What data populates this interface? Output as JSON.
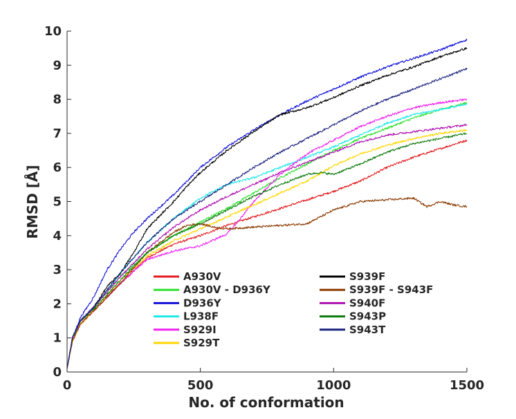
{
  "chart_data": {
    "type": "line",
    "title": "",
    "xlabel": "No. of conformation",
    "ylabel": "RMSD [Å]",
    "xlim": [
      0,
      1500
    ],
    "ylim": [
      0,
      10
    ],
    "xticks": [
      0,
      500,
      1000,
      1500
    ],
    "yticks": [
      0,
      1,
      2,
      3,
      4,
      5,
      6,
      7,
      8,
      9,
      10
    ],
    "grid": false,
    "legend_position": "bottom-right, two columns, no box",
    "series": [
      {
        "name": "A930V",
        "color": "#e31a1c",
        "x": [
          0,
          20,
          50,
          100,
          200,
          300,
          400,
          500,
          600,
          700,
          800,
          900,
          1000,
          1100,
          1200,
          1300,
          1400,
          1500
        ],
        "y": [
          0.1,
          0.9,
          1.4,
          1.8,
          2.6,
          3.35,
          3.75,
          4.0,
          4.3,
          4.55,
          4.8,
          5.05,
          5.3,
          5.6,
          6.0,
          6.3,
          6.55,
          6.8
        ]
      },
      {
        "name": "A930V - D936Y",
        "color": "#2ee02e",
        "x": [
          0,
          20,
          50,
          100,
          200,
          300,
          400,
          500,
          600,
          700,
          800,
          900,
          1000,
          1100,
          1200,
          1300,
          1400,
          1500
        ],
        "y": [
          0.1,
          1.0,
          1.5,
          1.9,
          2.8,
          3.5,
          4.0,
          4.4,
          4.8,
          5.25,
          5.7,
          6.1,
          6.5,
          6.85,
          7.15,
          7.45,
          7.7,
          7.9
        ]
      },
      {
        "name": "D936Y",
        "color": "#1010d8",
        "x": [
          0,
          20,
          50,
          100,
          150,
          200,
          250,
          300,
          350,
          400,
          450,
          500,
          600,
          700,
          800,
          900,
          1000,
          1100,
          1200,
          1300,
          1400,
          1500
        ],
        "y": [
          0.1,
          1.0,
          1.6,
          2.2,
          3.0,
          3.6,
          4.1,
          4.5,
          4.85,
          5.2,
          5.6,
          6.0,
          6.6,
          7.1,
          7.55,
          7.95,
          8.3,
          8.65,
          8.95,
          9.2,
          9.45,
          9.75
        ]
      },
      {
        "name": "L938F",
        "color": "#1ee8e8",
        "x": [
          0,
          20,
          50,
          100,
          200,
          300,
          400,
          500,
          550,
          600,
          650,
          700,
          800,
          900,
          1000,
          1100,
          1200,
          1300,
          1400,
          1500
        ],
        "y": [
          0.1,
          1.0,
          1.5,
          1.9,
          2.9,
          3.8,
          4.5,
          5.1,
          5.3,
          5.5,
          5.6,
          5.7,
          6.0,
          6.3,
          6.6,
          6.95,
          7.3,
          7.55,
          7.7,
          7.85
        ]
      },
      {
        "name": "S929I",
        "color": "#f020f0",
        "x": [
          0,
          20,
          50,
          100,
          200,
          300,
          400,
          500,
          600,
          650,
          700,
          800,
          900,
          1000,
          1100,
          1200,
          1300,
          1400,
          1500
        ],
        "y": [
          0.1,
          0.9,
          1.4,
          1.8,
          2.6,
          3.3,
          3.55,
          3.7,
          4.05,
          4.5,
          5.0,
          5.8,
          6.4,
          6.8,
          7.2,
          7.5,
          7.75,
          7.9,
          8.0
        ]
      },
      {
        "name": "S929T",
        "color": "#ffd700",
        "x": [
          0,
          20,
          50,
          100,
          200,
          300,
          400,
          500,
          600,
          700,
          800,
          900,
          1000,
          1100,
          1200,
          1300,
          1400,
          1500
        ],
        "y": [
          0.1,
          0.9,
          1.4,
          1.8,
          2.7,
          3.4,
          3.85,
          4.2,
          4.55,
          4.9,
          5.25,
          5.6,
          6.05,
          6.4,
          6.65,
          6.85,
          7.0,
          7.1
        ]
      },
      {
        "name": "S939F",
        "color": "#000000",
        "x": [
          0,
          20,
          50,
          100,
          150,
          200,
          250,
          300,
          350,
          400,
          450,
          500,
          600,
          700,
          800,
          900,
          1000,
          1100,
          1200,
          1300,
          1400,
          1500
        ],
        "y": [
          0.1,
          1.0,
          1.5,
          1.9,
          2.5,
          2.9,
          3.5,
          4.2,
          4.6,
          5.0,
          5.45,
          5.85,
          6.5,
          7.05,
          7.55,
          7.75,
          8.05,
          8.4,
          8.7,
          8.95,
          9.25,
          9.5
        ]
      },
      {
        "name": "S939F - S943F",
        "color": "#8b3a00",
        "x": [
          0,
          20,
          50,
          100,
          200,
          300,
          400,
          450,
          500,
          550,
          600,
          700,
          800,
          900,
          950,
          1000,
          1100,
          1200,
          1300,
          1350,
          1400,
          1450,
          1500
        ],
        "y": [
          0.1,
          0.9,
          1.4,
          1.8,
          2.6,
          3.5,
          4.1,
          4.3,
          4.35,
          4.25,
          4.2,
          4.25,
          4.3,
          4.35,
          4.55,
          4.75,
          5.0,
          5.05,
          5.1,
          4.85,
          5.0,
          4.9,
          4.85
        ]
      },
      {
        "name": "S940F",
        "color": "#b010b0",
        "x": [
          0,
          20,
          50,
          100,
          200,
          300,
          400,
          500,
          600,
          700,
          800,
          900,
          1000,
          1100,
          1200,
          1300,
          1400,
          1500
        ],
        "y": [
          0.1,
          1.0,
          1.5,
          1.9,
          2.8,
          3.6,
          4.25,
          4.75,
          5.15,
          5.5,
          5.85,
          6.15,
          6.45,
          6.75,
          6.95,
          7.05,
          7.15,
          7.25
        ]
      },
      {
        "name": "S943P",
        "color": "#0e7a0e",
        "x": [
          0,
          20,
          50,
          100,
          200,
          300,
          400,
          500,
          600,
          700,
          800,
          900,
          950,
          1000,
          1100,
          1200,
          1300,
          1400,
          1500
        ],
        "y": [
          0.1,
          1.0,
          1.5,
          1.85,
          2.7,
          3.5,
          4.0,
          4.35,
          4.75,
          5.15,
          5.5,
          5.8,
          5.85,
          5.8,
          6.1,
          6.45,
          6.7,
          6.85,
          7.0
        ]
      },
      {
        "name": "S943T",
        "color": "#1a237e",
        "x": [
          0,
          20,
          50,
          100,
          200,
          300,
          400,
          500,
          600,
          700,
          800,
          900,
          1000,
          1100,
          1200,
          1300,
          1400,
          1500
        ],
        "y": [
          0.1,
          1.0,
          1.5,
          1.9,
          2.9,
          3.8,
          4.5,
          5.0,
          5.5,
          6.0,
          6.45,
          6.85,
          7.25,
          7.65,
          8.0,
          8.3,
          8.6,
          8.9
        ]
      }
    ]
  }
}
